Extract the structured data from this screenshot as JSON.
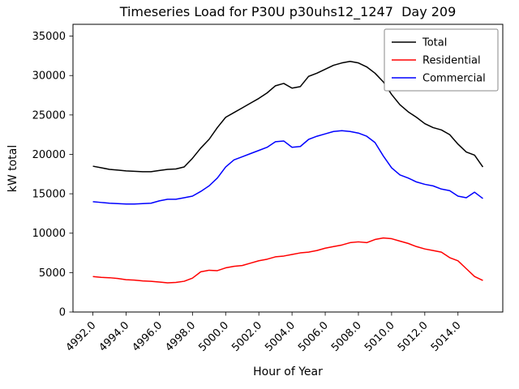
{
  "chart_data": {
    "type": "line",
    "title": "Timeseries Load for P30U p30uhs12_1247  Day 209",
    "xlabel": "Hour of Year",
    "ylabel": "kW total",
    "xlim": [
      4990.8,
      5016.7
    ],
    "ylim": [
      0,
      36500
    ],
    "grid": false,
    "legend": {
      "position": "upper right"
    },
    "xticks": {
      "values": [
        4992,
        4994,
        4996,
        4998,
        5000,
        5002,
        5004,
        5006,
        5008,
        5010,
        5012,
        5014
      ],
      "labels": [
        "4992.0",
        "4994.0",
        "4996.0",
        "4998.0",
        "5000.0",
        "5002.0",
        "5004.0",
        "5006.0",
        "5008.0",
        "5010.0",
        "5012.0",
        "5014.0"
      ]
    },
    "yticks": {
      "values": [
        0,
        5000,
        10000,
        15000,
        20000,
        25000,
        30000,
        35000
      ],
      "labels": [
        "0",
        "5000",
        "10000",
        "15000",
        "20000",
        "25000",
        "30000",
        "35000"
      ]
    },
    "x": [
      4992.0,
      4992.5,
      4993.0,
      4993.5,
      4994.0,
      4994.5,
      4995.0,
      4995.5,
      4996.0,
      4996.5,
      4997.0,
      4997.5,
      4998.0,
      4998.5,
      4999.0,
      4999.5,
      5000.0,
      5000.5,
      5001.0,
      5001.5,
      5002.0,
      5002.5,
      5003.0,
      5003.5,
      5004.0,
      5004.5,
      5005.0,
      5005.5,
      5006.0,
      5006.5,
      5007.0,
      5007.5,
      5008.0,
      5008.5,
      5009.0,
      5009.5,
      5010.0,
      5010.5,
      5011.0,
      5011.5,
      5012.0,
      5012.5,
      5013.0,
      5013.5,
      5014.0,
      5014.5,
      5015.0,
      5015.5
    ],
    "series": [
      {
        "name": "Total",
        "color": "#000000",
        "values": [
          18500,
          18300,
          18100,
          18000,
          17900,
          17850,
          17800,
          17800,
          17950,
          18100,
          18150,
          18400,
          19500,
          20800,
          21900,
          23400,
          24700,
          25300,
          25900,
          26500,
          27100,
          27800,
          28700,
          29000,
          28400,
          28600,
          29900,
          30300,
          30800,
          31300,
          31600,
          31800,
          31600,
          31100,
          30300,
          29200,
          27600,
          26300,
          25400,
          24700,
          23900,
          23400,
          23100,
          22500,
          21300,
          20300,
          19900,
          18400
        ]
      },
      {
        "name": "Residential",
        "color": "#ff0000",
        "values": [
          4500,
          4400,
          4350,
          4250,
          4100,
          4050,
          3950,
          3900,
          3800,
          3700,
          3750,
          3900,
          4300,
          5100,
          5300,
          5250,
          5600,
          5800,
          5900,
          6200,
          6500,
          6700,
          7000,
          7100,
          7300,
          7500,
          7600,
          7800,
          8100,
          8300,
          8500,
          8800,
          8900,
          8800,
          9200,
          9400,
          9300,
          9000,
          8700,
          8300,
          8000,
          7800,
          7600,
          6900,
          6500,
          5500,
          4500,
          4000
        ]
      },
      {
        "name": "Commercial",
        "color": "#0000ff",
        "values": [
          14000,
          13900,
          13800,
          13750,
          13700,
          13700,
          13750,
          13800,
          14100,
          14300,
          14300,
          14500,
          14700,
          15300,
          16000,
          17000,
          18400,
          19300,
          19700,
          20100,
          20500,
          20900,
          21600,
          21700,
          20900,
          21000,
          21900,
          22300,
          22600,
          22900,
          23000,
          22900,
          22700,
          22300,
          21500,
          19800,
          18300,
          17400,
          17000,
          16500,
          16200,
          16000,
          15600,
          15400,
          14700,
          14500,
          15200,
          14400
        ]
      }
    ]
  }
}
